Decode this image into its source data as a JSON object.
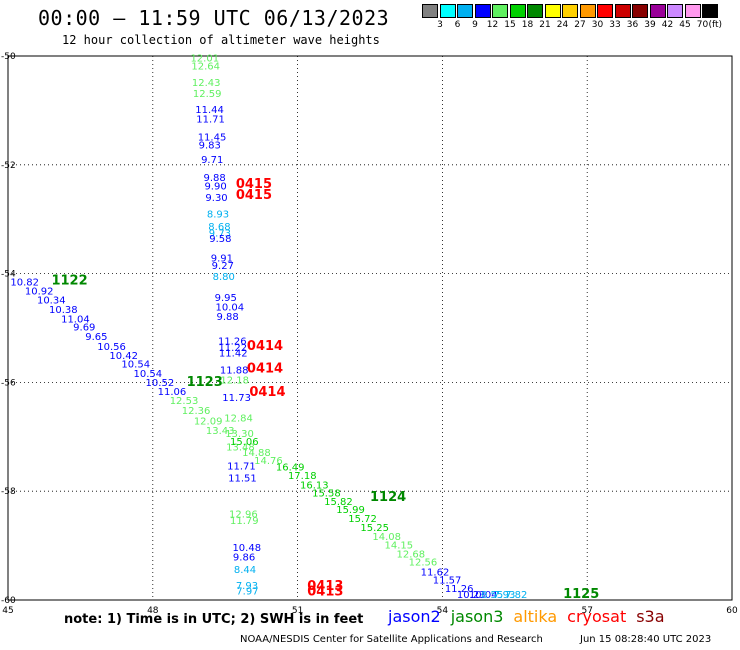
{
  "header": {
    "title": "00:00 – 11:59 UTC 06/13/2023",
    "subtitle": "12 hour collection of altimeter wave heights"
  },
  "legend": {
    "unit": "(ft)",
    "bins": [
      {
        "label": "3",
        "color": "#808080"
      },
      {
        "label": "6",
        "color": "#00ffff"
      },
      {
        "label": "9",
        "color": "#00b0f0"
      },
      {
        "label": "12",
        "color": "#0000ff"
      },
      {
        "label": "15",
        "color": "#60f060"
      },
      {
        "label": "18",
        "color": "#00d000"
      },
      {
        "label": "21",
        "color": "#008800"
      },
      {
        "label": "24",
        "color": "#ffff00"
      },
      {
        "label": "27",
        "color": "#ffd000"
      },
      {
        "label": "30",
        "color": "#ff9900"
      },
      {
        "label": "33",
        "color": "#ff0000"
      },
      {
        "label": "36",
        "color": "#cc0000"
      },
      {
        "label": "39",
        "color": "#880000"
      },
      {
        "label": "42",
        "color": "#990099"
      },
      {
        "label": "45",
        "color": "#cc88ff"
      },
      {
        "label": "70",
        "color": "#ff99ee"
      },
      {
        "label": "",
        "color": "#000000"
      }
    ]
  },
  "map": {
    "lon_range": [
      45,
      60
    ],
    "lat_range": [
      -60,
      -50
    ],
    "lon_ticks": [
      "45",
      "48",
      "51",
      "54",
      "57",
      "60"
    ],
    "lat_ticks": [
      "-50",
      "-52",
      "-54",
      "-56",
      "-58",
      "-60"
    ],
    "observations": [
      {
        "lon": 48.78,
        "lat": -50.1,
        "text": "12.01",
        "color": "#60f060"
      },
      {
        "lon": 48.8,
        "lat": -50.25,
        "text": "12.64",
        "color": "#60f060"
      },
      {
        "lon": 48.81,
        "lat": -50.55,
        "text": "12.43",
        "color": "#60f060"
      },
      {
        "lon": 48.83,
        "lat": -50.75,
        "text": "12.59",
        "color": "#60f060"
      },
      {
        "lon": 48.88,
        "lat": -51.05,
        "text": "11.44",
        "color": "#0000ff"
      },
      {
        "lon": 48.9,
        "lat": -51.22,
        "text": "11.71",
        "color": "#0000ff"
      },
      {
        "lon": 48.93,
        "lat": -51.55,
        "text": "11.45",
        "color": "#0000ff"
      },
      {
        "lon": 48.95,
        "lat": -51.7,
        "text": "9.83",
        "color": "#0000ff"
      },
      {
        "lon": 49.0,
        "lat": -51.97,
        "text": "9.71",
        "color": "#0000ff"
      },
      {
        "lon": 49.05,
        "lat": -52.3,
        "text": "9.88",
        "color": "#0000ff"
      },
      {
        "lon": 49.07,
        "lat": -52.45,
        "text": "9.90",
        "color": "#0000ff"
      },
      {
        "lon": 49.09,
        "lat": -52.67,
        "text": "9.30",
        "color": "#0000ff"
      },
      {
        "lon": 49.12,
        "lat": -52.97,
        "text": "8.93",
        "color": "#00b0f0"
      },
      {
        "lon": 49.15,
        "lat": -53.2,
        "text": "8.68",
        "color": "#00b0f0"
      },
      {
        "lon": 49.16,
        "lat": -53.32,
        "text": "9.73",
        "color": "#00b0f0"
      },
      {
        "lon": 49.17,
        "lat": -53.42,
        "text": "9.58",
        "color": "#0000ff"
      },
      {
        "lon": 49.2,
        "lat": -53.78,
        "text": "9.91",
        "color": "#0000ff"
      },
      {
        "lon": 49.22,
        "lat": -53.92,
        "text": "9.27",
        "color": "#0000ff"
      },
      {
        "lon": 49.24,
        "lat": -54.12,
        "text": "8.80",
        "color": "#00b0f0"
      },
      {
        "lon": 49.28,
        "lat": -54.5,
        "text": "9.95",
        "color": "#0000ff"
      },
      {
        "lon": 49.3,
        "lat": -54.68,
        "text": "10.04",
        "color": "#0000ff"
      },
      {
        "lon": 49.32,
        "lat": -54.85,
        "text": "9.88",
        "color": "#0000ff"
      },
      {
        "lon": 49.35,
        "lat": -55.3,
        "text": "11.26",
        "color": "#0000ff"
      },
      {
        "lon": 49.36,
        "lat": -55.42,
        "text": "11.22",
        "color": "#0000ff"
      },
      {
        "lon": 49.37,
        "lat": -55.52,
        "text": "11.42",
        "color": "#0000ff"
      },
      {
        "lon": 49.39,
        "lat": -55.84,
        "text": "11.88",
        "color": "#0000ff"
      },
      {
        "lon": 49.4,
        "lat": -56.02,
        "text": "12.18",
        "color": "#60f060"
      },
      {
        "lon": 49.44,
        "lat": -56.34,
        "text": "11.73",
        "color": "#0000ff"
      },
      {
        "lon": 49.48,
        "lat": -56.72,
        "text": "12.84",
        "color": "#60f060"
      },
      {
        "lon": 49.5,
        "lat": -57.0,
        "text": "13.30",
        "color": "#60f060"
      },
      {
        "lon": 49.52,
        "lat": -57.25,
        "text": "13.48",
        "color": "#60f060"
      },
      {
        "lon": 49.54,
        "lat": -57.6,
        "text": "11.71",
        "color": "#0000ff"
      },
      {
        "lon": 49.56,
        "lat": -57.82,
        "text": "11.51",
        "color": "#0000ff"
      },
      {
        "lon": 49.58,
        "lat": -58.48,
        "text": "12.96",
        "color": "#60f060"
      },
      {
        "lon": 49.6,
        "lat": -58.6,
        "text": "11.79",
        "color": "#60f060"
      },
      {
        "lon": 49.65,
        "lat": -59.1,
        "text": "10.48",
        "color": "#0000ff"
      },
      {
        "lon": 49.66,
        "lat": -59.27,
        "text": "9.86",
        "color": "#0000ff"
      },
      {
        "lon": 49.68,
        "lat": -59.5,
        "text": "8.44",
        "color": "#00b0f0"
      },
      {
        "lon": 49.72,
        "lat": -59.8,
        "text": "7.93",
        "color": "#00b0f0"
      },
      {
        "lon": 49.73,
        "lat": -59.9,
        "text": "7.97",
        "color": "#00b0f0"
      },
      {
        "lon": 45.05,
        "lat": -54.22,
        "text": "10.82",
        "color": "#0000ff"
      },
      {
        "lon": 45.35,
        "lat": -54.38,
        "text": "10.92",
        "color": "#0000ff"
      },
      {
        "lon": 45.6,
        "lat": -54.55,
        "text": "10.34",
        "color": "#0000ff"
      },
      {
        "lon": 45.85,
        "lat": -54.72,
        "text": "10.38",
        "color": "#0000ff"
      },
      {
        "lon": 46.1,
        "lat": -54.9,
        "text": "11.04",
        "color": "#0000ff"
      },
      {
        "lon": 46.35,
        "lat": -55.05,
        "text": "9.69",
        "color": "#0000ff"
      },
      {
        "lon": 46.6,
        "lat": -55.22,
        "text": "9.65",
        "color": "#0000ff"
      },
      {
        "lon": 46.85,
        "lat": -55.4,
        "text": "10.56",
        "color": "#0000ff"
      },
      {
        "lon": 47.1,
        "lat": -55.57,
        "text": "10.42",
        "color": "#0000ff"
      },
      {
        "lon": 47.35,
        "lat": -55.73,
        "text": "10.54",
        "color": "#0000ff"
      },
      {
        "lon": 47.6,
        "lat": -55.9,
        "text": "10.54",
        "color": "#0000ff"
      },
      {
        "lon": 47.85,
        "lat": -56.07,
        "text": "10.52",
        "color": "#0000ff"
      },
      {
        "lon": 48.1,
        "lat": -56.23,
        "text": "11.06",
        "color": "#0000ff"
      },
      {
        "lon": 48.35,
        "lat": -56.4,
        "text": "12.53",
        "color": "#60f060"
      },
      {
        "lon": 48.6,
        "lat": -56.58,
        "text": "12.36",
        "color": "#60f060"
      },
      {
        "lon": 48.85,
        "lat": -56.77,
        "text": "12.09",
        "color": "#60f060"
      },
      {
        "lon": 49.1,
        "lat": -56.95,
        "text": "13.43",
        "color": "#60f060"
      },
      {
        "lon": 49.6,
        "lat": -57.15,
        "text": "15.06",
        "color": "#00d000"
      },
      {
        "lon": 49.85,
        "lat": -57.35,
        "text": "14.88",
        "color": "#60f060"
      },
      {
        "lon": 50.1,
        "lat": -57.5,
        "text": "14.76",
        "color": "#60f060"
      },
      {
        "lon": 50.55,
        "lat": -57.62,
        "text": "16.49",
        "color": "#00d000"
      },
      {
        "lon": 50.8,
        "lat": -57.78,
        "text": "17.18",
        "color": "#00d000"
      },
      {
        "lon": 51.05,
        "lat": -57.95,
        "text": "16.13",
        "color": "#00d000"
      },
      {
        "lon": 51.3,
        "lat": -58.1,
        "text": "15.58",
        "color": "#00d000"
      },
      {
        "lon": 51.55,
        "lat": -58.25,
        "text": "15.82",
        "color": "#00d000"
      },
      {
        "lon": 51.8,
        "lat": -58.4,
        "text": "15.99",
        "color": "#00d000"
      },
      {
        "lon": 52.05,
        "lat": -58.57,
        "text": "15.72",
        "color": "#00d000"
      },
      {
        "lon": 52.3,
        "lat": -58.73,
        "text": "15.25",
        "color": "#00d000"
      },
      {
        "lon": 52.55,
        "lat": -58.9,
        "text": "14.08",
        "color": "#60f060"
      },
      {
        "lon": 52.8,
        "lat": -59.05,
        "text": "14.15",
        "color": "#60f060"
      },
      {
        "lon": 53.05,
        "lat": -59.22,
        "text": "12.68",
        "color": "#60f060"
      },
      {
        "lon": 53.3,
        "lat": -59.37,
        "text": "12.56",
        "color": "#60f060"
      },
      {
        "lon": 53.55,
        "lat": -59.55,
        "text": "11.62",
        "color": "#0000ff"
      },
      {
        "lon": 53.8,
        "lat": -59.7,
        "text": "11.57",
        "color": "#0000ff"
      },
      {
        "lon": 54.05,
        "lat": -59.85,
        "text": "11.26",
        "color": "#0000ff"
      },
      {
        "lon": 54.3,
        "lat": -60.0,
        "text": "10.23",
        "color": "#0000ff"
      },
      {
        "lon": 54.55,
        "lat": -60.15,
        "text": "10.04",
        "color": "#0000ff"
      },
      {
        "lon": 54.8,
        "lat": -60.3,
        "text": "8.55",
        "color": "#00b0f0"
      },
      {
        "lon": 55.05,
        "lat": -60.45,
        "text": "7.93",
        "color": "#00b0f0"
      },
      {
        "lon": 55.3,
        "lat": -60.6,
        "text": "7.82",
        "color": "#00b0f0"
      }
    ],
    "pass_times": [
      {
        "lon": 49.72,
        "lat": -52.43,
        "text": "0415",
        "color": "#ff0000"
      },
      {
        "lon": 49.72,
        "lat": -52.63,
        "text": "0415",
        "color": "#ff0000"
      },
      {
        "lon": 49.95,
        "lat": -55.4,
        "text": "0414",
        "color": "#ff0000"
      },
      {
        "lon": 49.95,
        "lat": -55.82,
        "text": "0414",
        "color": "#ff0000"
      },
      {
        "lon": 50.0,
        "lat": -56.25,
        "text": "0414",
        "color": "#ff0000"
      },
      {
        "lon": 51.2,
        "lat": -59.82,
        "text": "0413",
        "color": "#ff0000"
      },
      {
        "lon": 51.2,
        "lat": -59.92,
        "text": "0413",
        "color": "#ff0000"
      },
      {
        "lon": 45.9,
        "lat": -54.2,
        "text": "1122",
        "color": "#008800"
      },
      {
        "lon": 48.7,
        "lat": -56.07,
        "text": "1123",
        "color": "#008800"
      },
      {
        "lon": 52.5,
        "lat": -58.18,
        "text": "1124",
        "color": "#008800"
      },
      {
        "lon": 56.5,
        "lat": -60.0,
        "text": "1125",
        "color": "#008800"
      }
    ]
  },
  "footer": {
    "note": "note: 1) Time is in UTC; 2) SWH is in feet",
    "satellites": [
      {
        "name": "jason2",
        "color": "#0000ff"
      },
      {
        "name": "jason3",
        "color": "#008800"
      },
      {
        "name": "altika",
        "color": "#ff9900"
      },
      {
        "name": "cryosat",
        "color": "#ff0000"
      },
      {
        "name": "s3a",
        "color": "#880000"
      }
    ],
    "credit": "NOAA/NESDIS Center for Satellite Applications and Research",
    "timestamp": "Jun 15 08:28:40 UTC 2023"
  }
}
